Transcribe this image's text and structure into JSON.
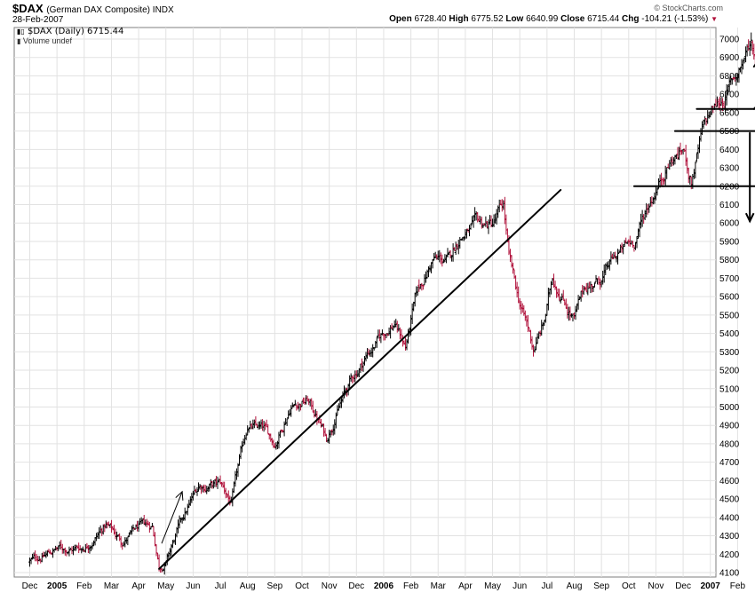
{
  "header": {
    "symbol": "$DAX",
    "symbol_name": "(German DAX Composite) INDX",
    "date": "28-Feb-2007",
    "credit": "© StockCharts.com",
    "open_label": "Open",
    "open": "6728.40",
    "high_label": "High",
    "high": "6775.52",
    "low_label": "Low",
    "low": "6640.99",
    "close_label": "Close",
    "close": "6715.44",
    "chg_label": "Chg",
    "chg": "-104.21 (-1.53%)",
    "legend_series": "$DAX (Daily) 6715.44",
    "legend_volume": "Volume undef"
  },
  "colors": {
    "up": "#000000",
    "down": "#b0103a",
    "grid": "#e2e2e2",
    "annotation": "#000000"
  },
  "chart_data": {
    "type": "line",
    "subtype": "ohlc-bars",
    "ylim": [
      4080,
      7080
    ],
    "yticks": [
      4100,
      4200,
      4300,
      4400,
      4500,
      4600,
      4700,
      4800,
      4900,
      5000,
      5100,
      5200,
      5300,
      5400,
      5500,
      5600,
      5700,
      5800,
      5900,
      6000,
      6100,
      6200,
      6300,
      6400,
      6500,
      6600,
      6700,
      6800,
      6900,
      7000
    ],
    "xlim": [
      0,
      26
    ],
    "month_ticks": [
      {
        "m": 0,
        "label": "Dec"
      },
      {
        "m": 1,
        "label": "2005",
        "bold": true
      },
      {
        "m": 2,
        "label": "Feb"
      },
      {
        "m": 3,
        "label": "Mar"
      },
      {
        "m": 4,
        "label": "Apr"
      },
      {
        "m": 5,
        "label": "May"
      },
      {
        "m": 6,
        "label": "Jun"
      },
      {
        "m": 7,
        "label": "Jul"
      },
      {
        "m": 8,
        "label": "Aug"
      },
      {
        "m": 9,
        "label": "Sep"
      },
      {
        "m": 10,
        "label": "Oct"
      },
      {
        "m": 11,
        "label": "Nov"
      },
      {
        "m": 12,
        "label": "Dec"
      },
      {
        "m": 13,
        "label": "2006",
        "bold": true
      },
      {
        "m": 14,
        "label": "Feb"
      },
      {
        "m": 15,
        "label": "Mar"
      },
      {
        "m": 16,
        "label": "Apr"
      },
      {
        "m": 17,
        "label": "May"
      },
      {
        "m": 18,
        "label": "Jun"
      },
      {
        "m": 19,
        "label": "Jul"
      },
      {
        "m": 20,
        "label": "Aug"
      },
      {
        "m": 21,
        "label": "Sep"
      },
      {
        "m": 22,
        "label": "Oct"
      },
      {
        "m": 23,
        "label": "Nov"
      },
      {
        "m": 24,
        "label": "Dec"
      },
      {
        "m": 25,
        "label": "2007",
        "bold": true
      },
      {
        "m": 26,
        "label": "Feb"
      }
    ],
    "price_path": [
      [
        0.0,
        4160
      ],
      [
        0.6,
        4200
      ],
      [
        1.0,
        4230
      ],
      [
        1.5,
        4230
      ],
      [
        2.0,
        4240
      ],
      [
        2.8,
        4360
      ],
      [
        3.4,
        4270
      ],
      [
        4.0,
        4340
      ],
      [
        4.5,
        4350
      ],
      [
        4.75,
        4140
      ],
      [
        5.0,
        4160
      ],
      [
        5.5,
        4350
      ],
      [
        6.2,
        4570
      ],
      [
        7.0,
        4580
      ],
      [
        7.4,
        4480
      ],
      [
        8.0,
        4900
      ],
      [
        8.6,
        4870
      ],
      [
        9.0,
        4800
      ],
      [
        9.6,
        5020
      ],
      [
        10.2,
        5040
      ],
      [
        10.5,
        4960
      ],
      [
        10.9,
        4830
      ],
      [
        11.3,
        4990
      ],
      [
        11.8,
        5140
      ],
      [
        12.4,
        5290
      ],
      [
        13.0,
        5400
      ],
      [
        13.4,
        5460
      ],
      [
        13.8,
        5330
      ],
      [
        14.2,
        5600
      ],
      [
        14.8,
        5800
      ],
      [
        15.4,
        5790
      ],
      [
        15.8,
        5930
      ],
      [
        16.4,
        5980
      ],
      [
        17.0,
        5990
      ],
      [
        17.4,
        6090
      ],
      [
        17.6,
        5800
      ],
      [
        17.9,
        5600
      ],
      [
        18.3,
        5420
      ],
      [
        18.5,
        5310
      ],
      [
        18.9,
        5460
      ],
      [
        19.2,
        5700
      ],
      [
        19.6,
        5600
      ],
      [
        20.0,
        5480
      ],
      [
        20.4,
        5650
      ],
      [
        21.0,
        5700
      ],
      [
        21.6,
        5830
      ],
      [
        22.2,
        5900
      ],
      [
        22.8,
        6130
      ],
      [
        23.4,
        6320
      ],
      [
        24.0,
        6400
      ],
      [
        24.3,
        6230
      ],
      [
        24.7,
        6490
      ],
      [
        25.0,
        6590
      ],
      [
        25.5,
        6680
      ],
      [
        26.0,
        6820
      ],
      [
        26.5,
        6990
      ],
      [
        26.75,
        6850
      ],
      [
        26.85,
        6715
      ]
    ],
    "annotations": [
      {
        "kind": "line",
        "x1": 4.75,
        "y1": 4120,
        "x2": 19.5,
        "y2": 6180
      },
      {
        "kind": "line",
        "x1": 22.2,
        "y1": 6200,
        "x2": 27.3,
        "y2": 6200,
        "arrow": true
      },
      {
        "kind": "line",
        "x1": 23.7,
        "y1": 6500,
        "x2": 27.3,
        "y2": 6500
      },
      {
        "kind": "line",
        "x1": 24.5,
        "y1": 6620,
        "x2": 27.3,
        "y2": 6620
      },
      {
        "kind": "arrow",
        "x1": 4.85,
        "y1": 4260,
        "x2": 5.6,
        "y2": 4540,
        "width": 1
      },
      {
        "kind": "arrow",
        "x1": 26.45,
        "y1": 6490,
        "x2": 26.45,
        "y2": 6010
      },
      {
        "kind": "arrow",
        "x1": 26.6,
        "y1": 6850,
        "x2": 27.5,
        "y2": 7040
      },
      {
        "kind": "arrow",
        "x1": 26.6,
        "y1": 6620,
        "x2": 27.5,
        "y2": 6750
      },
      {
        "kind": "arrow",
        "x1": 26.9,
        "y1": 6790,
        "x2": 27.5,
        "y2": 6840,
        "width": 1
      }
    ]
  }
}
